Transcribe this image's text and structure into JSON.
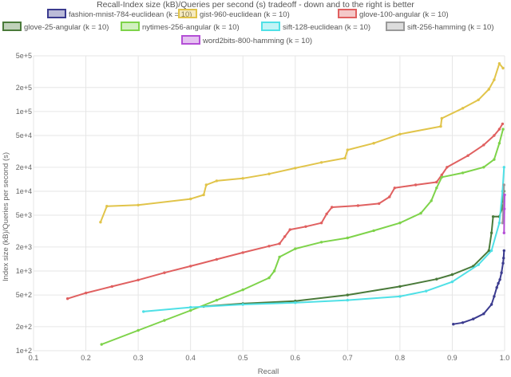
{
  "chart_data": {
    "type": "line",
    "title": "Recall-Index size (kB)/Queries per second (s) tradeoff - down and to the right is better",
    "xlabel": "Recall",
    "ylabel": "Index size (kB)/Queries per second (s)",
    "xlim": [
      0.1,
      1.0
    ],
    "ylim": [
      100,
      500000
    ],
    "y_scale": "log",
    "grid": true,
    "legend_position": "top",
    "x_ticks": [
      "0.1",
      "0.2",
      "0.3",
      "0.4",
      "0.5",
      "0.6",
      "0.7",
      "0.8",
      "0.9",
      "1.0"
    ],
    "y_ticks": [
      {
        "value": 100,
        "label": "1e+2"
      },
      {
        "value": 200,
        "label": "2e+2"
      },
      {
        "value": 500,
        "label": "5e+2"
      },
      {
        "value": 1000,
        "label": "1e+3"
      },
      {
        "value": 2000,
        "label": "2e+3"
      },
      {
        "value": 5000,
        "label": "5e+3"
      },
      {
        "value": 10000,
        "label": "1e+4"
      },
      {
        "value": 20000,
        "label": "2e+4"
      },
      {
        "value": 50000,
        "label": "5e+4"
      },
      {
        "value": 100000,
        "label": "1e+5"
      },
      {
        "value": 200000,
        "label": "2e+5"
      },
      {
        "value": 500000,
        "label": "5e+5"
      }
    ],
    "series": [
      {
        "name": "fashion-mnist-784-euclidean (k = 10)",
        "color": "#3b3b8f",
        "points": [
          [
            0.902,
            215
          ],
          [
            0.92,
            225
          ],
          [
            0.94,
            250
          ],
          [
            0.96,
            290
          ],
          [
            0.975,
            380
          ],
          [
            0.98,
            480
          ],
          [
            0.985,
            620
          ],
          [
            0.988,
            700
          ],
          [
            0.991,
            780
          ],
          [
            0.994,
            950
          ],
          [
            0.997,
            1250
          ],
          [
            0.998,
            1450
          ],
          [
            0.999,
            1800
          ]
        ]
      },
      {
        "name": "gist-960-euclidean (k = 10)",
        "color": "#e1c44a",
        "points": [
          [
            0.228,
            4100
          ],
          [
            0.24,
            6500
          ],
          [
            0.3,
            6700
          ],
          [
            0.4,
            8000
          ],
          [
            0.425,
            9000
          ],
          [
            0.43,
            12000
          ],
          [
            0.45,
            13500
          ],
          [
            0.5,
            14500
          ],
          [
            0.55,
            16500
          ],
          [
            0.6,
            19500
          ],
          [
            0.65,
            23000
          ],
          [
            0.695,
            26000
          ],
          [
            0.7,
            33000
          ],
          [
            0.75,
            40000
          ],
          [
            0.8,
            52000
          ],
          [
            0.878,
            65000
          ],
          [
            0.88,
            82000
          ],
          [
            0.92,
            110000
          ],
          [
            0.95,
            140000
          ],
          [
            0.97,
            190000
          ],
          [
            0.98,
            250000
          ],
          [
            0.99,
            400000
          ],
          [
            0.997,
            350000
          ]
        ]
      },
      {
        "name": "glove-100-angular (k = 10)",
        "color": "#e06060",
        "points": [
          [
            0.165,
            450
          ],
          [
            0.2,
            530
          ],
          [
            0.25,
            640
          ],
          [
            0.3,
            770
          ],
          [
            0.35,
            950
          ],
          [
            0.4,
            1150
          ],
          [
            0.45,
            1400
          ],
          [
            0.5,
            1700
          ],
          [
            0.55,
            2050
          ],
          [
            0.57,
            2200
          ],
          [
            0.58,
            2700
          ],
          [
            0.59,
            3300
          ],
          [
            0.62,
            3600
          ],
          [
            0.65,
            4000
          ],
          [
            0.66,
            5200
          ],
          [
            0.67,
            6300
          ],
          [
            0.72,
            6600
          ],
          [
            0.76,
            7000
          ],
          [
            0.78,
            8500
          ],
          [
            0.79,
            11000
          ],
          [
            0.83,
            12000
          ],
          [
            0.87,
            13000
          ],
          [
            0.88,
            16000
          ],
          [
            0.89,
            20000
          ],
          [
            0.93,
            28000
          ],
          [
            0.96,
            38000
          ],
          [
            0.98,
            50000
          ],
          [
            0.99,
            60000
          ],
          [
            0.996,
            70000
          ]
        ]
      },
      {
        "name": "glove-25-angular (k = 10)",
        "color": "#4a7a3a",
        "points": [
          [
            0.425,
            360
          ],
          [
            0.5,
            390
          ],
          [
            0.6,
            420
          ],
          [
            0.7,
            500
          ],
          [
            0.8,
            640
          ],
          [
            0.87,
            790
          ],
          [
            0.9,
            900
          ],
          [
            0.94,
            1150
          ],
          [
            0.97,
            1800
          ],
          [
            0.975,
            3000
          ],
          [
            0.978,
            4800
          ],
          [
            0.99,
            4800
          ],
          [
            0.995,
            6000
          ],
          [
            0.997,
            8000
          ],
          [
            0.999,
            10000
          ]
        ]
      },
      {
        "name": "nytimes-256-angular (k = 10)",
        "color": "#7ed34a",
        "points": [
          [
            0.23,
            120
          ],
          [
            0.3,
            180
          ],
          [
            0.35,
            240
          ],
          [
            0.4,
            320
          ],
          [
            0.45,
            430
          ],
          [
            0.5,
            580
          ],
          [
            0.55,
            820
          ],
          [
            0.56,
            1000
          ],
          [
            0.57,
            1500
          ],
          [
            0.6,
            1900
          ],
          [
            0.65,
            2300
          ],
          [
            0.7,
            2600
          ],
          [
            0.75,
            3200
          ],
          [
            0.8,
            4000
          ],
          [
            0.84,
            5300
          ],
          [
            0.86,
            7600
          ],
          [
            0.87,
            11000
          ],
          [
            0.88,
            15000
          ],
          [
            0.92,
            17000
          ],
          [
            0.96,
            20000
          ],
          [
            0.98,
            25000
          ],
          [
            0.99,
            40000
          ],
          [
            0.997,
            60000
          ]
        ]
      },
      {
        "name": "sift-128-euclidean (k = 10)",
        "color": "#4fe0e6",
        "points": [
          [
            0.31,
            310
          ],
          [
            0.4,
            350
          ],
          [
            0.5,
            380
          ],
          [
            0.6,
            400
          ],
          [
            0.7,
            430
          ],
          [
            0.8,
            480
          ],
          [
            0.85,
            560
          ],
          [
            0.9,
            730
          ],
          [
            0.95,
            1200
          ],
          [
            0.975,
            1800
          ],
          [
            0.99,
            4000
          ],
          [
            0.996,
            10000
          ],
          [
            0.999,
            20000
          ]
        ]
      },
      {
        "name": "sift-256-hamming (k = 10)",
        "color": "#9a9a9a",
        "points": [
          [
            0.996,
            4000
          ],
          [
            0.998,
            7000
          ],
          [
            0.999,
            12000
          ]
        ]
      },
      {
        "name": "word2bits-800-hamming (k = 10)",
        "color": "#b44fd6",
        "points": [
          [
            0.999,
            3000
          ],
          [
            0.9995,
            6000
          ],
          [
            1.0,
            9000
          ]
        ]
      }
    ]
  }
}
